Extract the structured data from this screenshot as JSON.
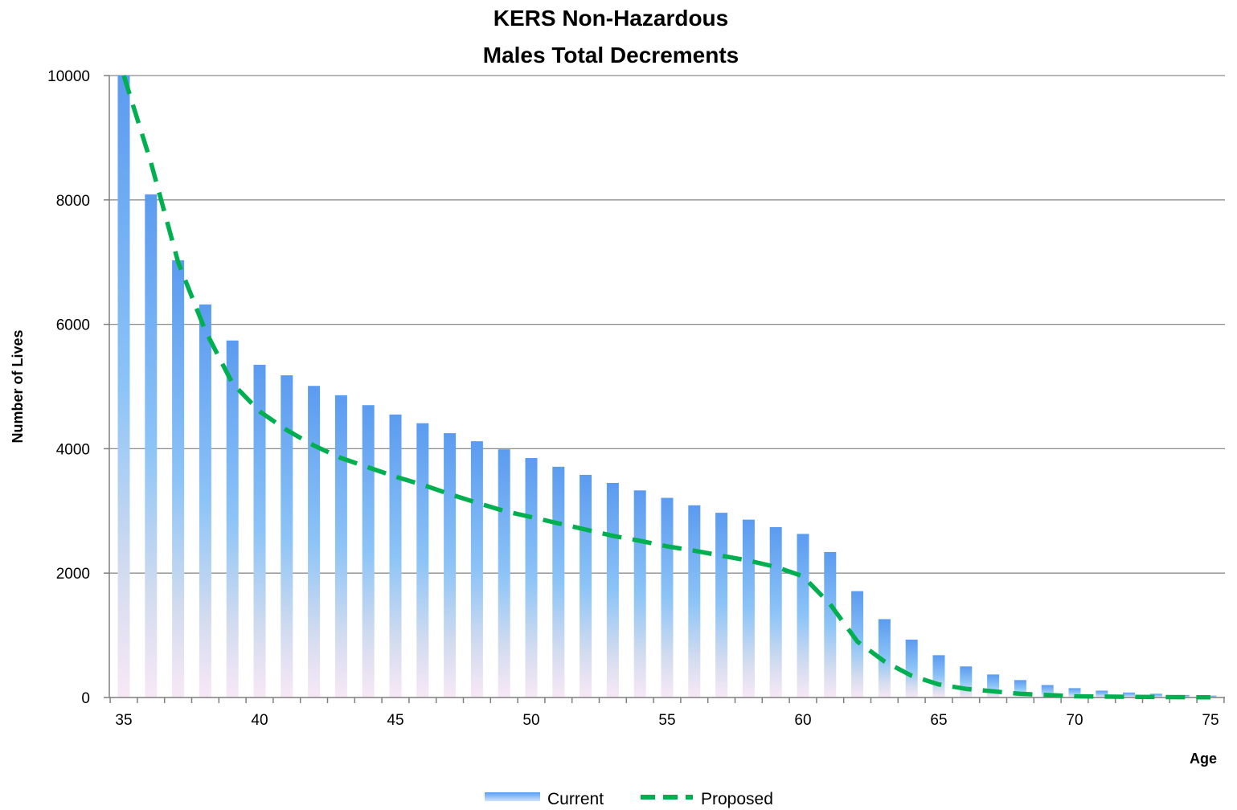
{
  "chart_data": {
    "type": "bar",
    "title": [
      "KERS Non-Hazardous",
      "Males Total Decrements"
    ],
    "xlabel": "Age",
    "ylabel": "Number of Lives",
    "ylim": [
      0,
      10000
    ],
    "yticks": [
      "0",
      "2000",
      "4000",
      "6000",
      "8000",
      "10000"
    ],
    "xticks": [
      "35",
      "40",
      "45",
      "50",
      "55",
      "60",
      "65",
      "70",
      "75"
    ],
    "x": [
      35,
      36,
      37,
      38,
      39,
      40,
      41,
      42,
      43,
      44,
      45,
      46,
      47,
      48,
      49,
      50,
      51,
      52,
      53,
      54,
      55,
      56,
      57,
      58,
      59,
      60,
      61,
      62,
      63,
      64,
      65,
      66,
      67,
      68,
      69,
      70,
      71,
      72,
      73,
      74,
      75
    ],
    "grid": true,
    "legend": "bottom",
    "series": [
      {
        "name": "Current",
        "type": "bar",
        "color": "#5B9BF0",
        "values": [
          10000,
          8090,
          7030,
          6320,
          5740,
          5350,
          5180,
          5010,
          4860,
          4700,
          4550,
          4410,
          4250,
          4120,
          3990,
          3850,
          3710,
          3580,
          3450,
          3330,
          3210,
          3090,
          2970,
          2860,
          2740,
          2630,
          2340,
          1710,
          1260,
          930,
          680,
          500,
          370,
          280,
          200,
          150,
          110,
          80,
          60,
          40,
          30
        ]
      },
      {
        "name": "Proposed",
        "type": "line",
        "style": "dashed",
        "color": "#00B050",
        "values": [
          10000,
          8600,
          7000,
          5900,
          5050,
          4600,
          4300,
          4050,
          3850,
          3700,
          3550,
          3420,
          3270,
          3130,
          3000,
          2900,
          2800,
          2700,
          2600,
          2520,
          2430,
          2360,
          2280,
          2200,
          2100,
          1950,
          1500,
          900,
          580,
          350,
          210,
          140,
          100,
          60,
          40,
          20,
          15,
          10,
          8,
          5,
          2
        ]
      }
    ]
  }
}
